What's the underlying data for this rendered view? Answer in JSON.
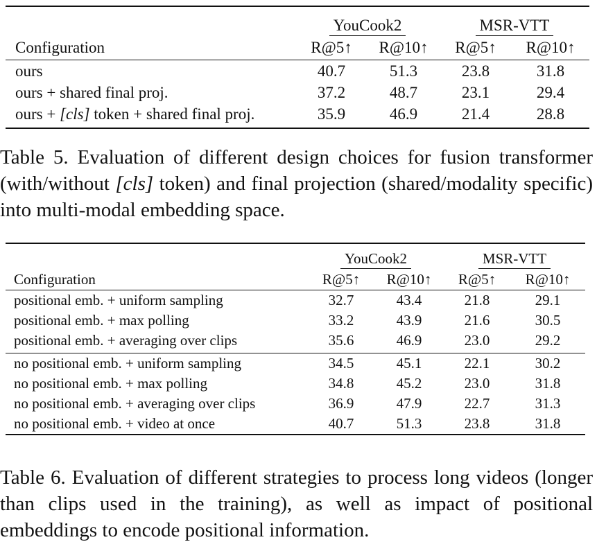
{
  "table5": {
    "groups": [
      "YouCook2",
      "MSR-VTT"
    ],
    "config_header": "Configuration",
    "metrics": [
      "R@5↑",
      "R@10↑",
      "R@5↑",
      "R@10↑"
    ],
    "rows": [
      {
        "config_pre": "ours",
        "config_math": "",
        "config_post": "",
        "values": [
          "40.7",
          "51.3",
          "23.8",
          "31.8"
        ]
      },
      {
        "config_pre": "ours + shared final proj.",
        "config_math": "",
        "config_post": "",
        "values": [
          "37.2",
          "48.7",
          "23.1",
          "29.4"
        ]
      },
      {
        "config_pre": "ours + ",
        "config_math": "[cls]",
        "config_post": " token + shared final proj.",
        "values": [
          "35.9",
          "46.9",
          "21.4",
          "28.8"
        ]
      }
    ],
    "caption_pre": "Table 5.  Evaluation of different design choices for fusion transformer (with/without ",
    "caption_math": "[cls]",
    "caption_post": " token) and final projection (shared/modality specific) into multi-modal embedding space."
  },
  "table6": {
    "groups": [
      "YouCook2",
      "MSR-VTT"
    ],
    "config_header": "Configuration",
    "metrics": [
      "R@5↑",
      "R@10↑",
      "R@5↑",
      "R@10↑"
    ],
    "rows": [
      {
        "config": "positional emb. + uniform sampling",
        "values": [
          "32.7",
          "43.4",
          "21.8",
          "29.1"
        ]
      },
      {
        "config": "positional emb. + max polling",
        "values": [
          "33.2",
          "43.9",
          "21.6",
          "30.5"
        ]
      },
      {
        "config": "positional emb. + averaging over clips",
        "values": [
          "35.6",
          "46.9",
          "23.0",
          "29.2"
        ]
      },
      {
        "config": "no positional emb. + uniform sampling",
        "values": [
          "34.5",
          "45.1",
          "22.1",
          "30.2"
        ]
      },
      {
        "config": "no positional emb. + max polling",
        "values": [
          "34.8",
          "45.2",
          "23.0",
          "31.8"
        ]
      },
      {
        "config": "no positional emb. + averaging over clips",
        "values": [
          "36.9",
          "47.9",
          "22.7",
          "31.3"
        ]
      },
      {
        "config": "no positional emb. + video at once",
        "values": [
          "40.7",
          "51.3",
          "23.8",
          "31.8"
        ]
      }
    ],
    "caption": "Table 6. Evaluation of different strategies to process long videos (longer than clips used in the training), as well as impact of positional embeddings to encode positional information."
  }
}
